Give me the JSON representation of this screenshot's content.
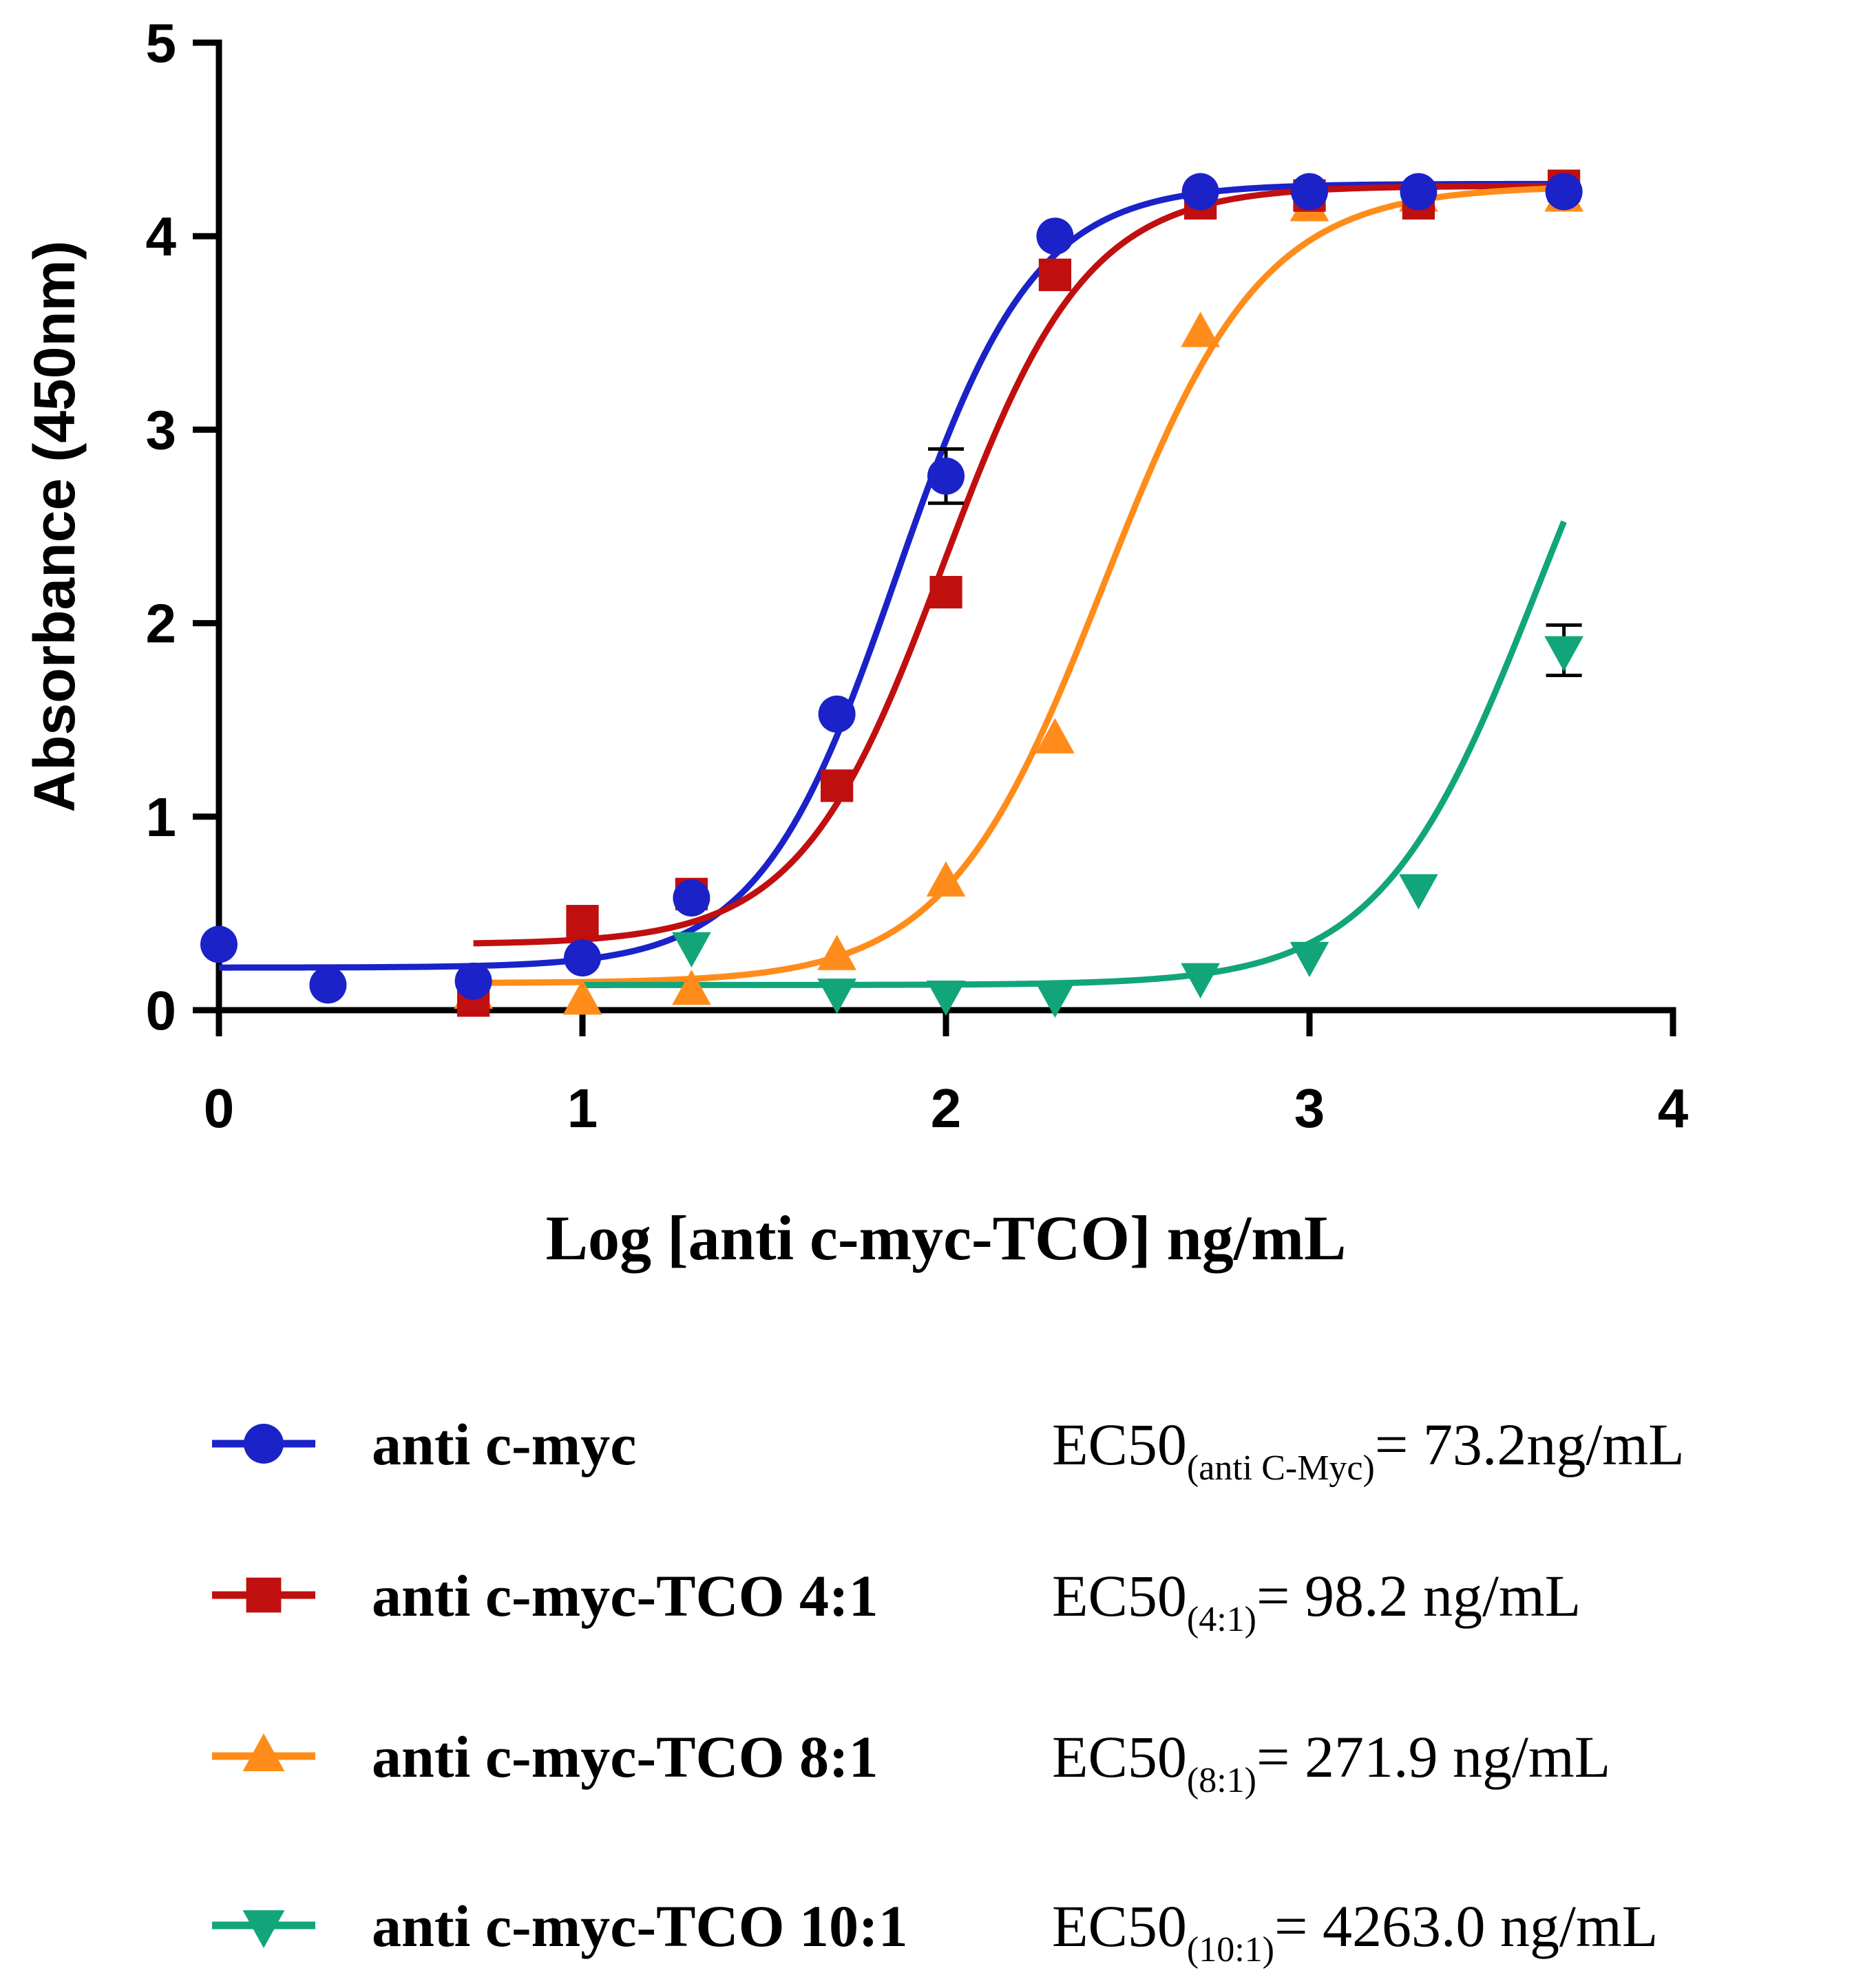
{
  "chart_data": {
    "type": "scatter",
    "xlabel": "Log [anti c-myc-TCO] ng/mL",
    "ylabel": "Absorbance (450nm)",
    "xlim": [
      0,
      4
    ],
    "ylim": [
      0,
      5
    ],
    "xticks": [
      0,
      1,
      2,
      3,
      4
    ],
    "yticks": [
      0,
      1,
      2,
      3,
      4,
      5
    ],
    "legend_position": "bottom",
    "series": [
      {
        "name": "anti c-myc",
        "color": "#1a22c8",
        "marker": "circle",
        "x": [
          0,
          0.3,
          0.7,
          1.0,
          1.3,
          1.7,
          2.0,
          2.3,
          2.7,
          3.0,
          3.3,
          3.7
        ],
        "y": [
          0.34,
          0.13,
          0.15,
          0.27,
          0.58,
          1.53,
          2.76,
          4.0,
          4.23,
          4.23,
          4.23,
          4.23
        ],
        "errors": [
          0,
          0,
          0,
          0,
          0,
          0,
          0.14,
          0,
          0,
          0,
          0,
          0
        ],
        "fit": {
          "bottom": 0.22,
          "top": 4.27,
          "logec50": 1.864,
          "hill": 2.3,
          "xmin": 0,
          "xmax": 3.7
        },
        "ec50_main": "EC50",
        "ec50_sub": "(anti C-Myc)",
        "ec50_value": "= 73.2ng/mL"
      },
      {
        "name": "anti c-myc-TCO 4:1",
        "color": "#c00f0f",
        "marker": "square",
        "x": [
          0.7,
          1.0,
          1.3,
          1.7,
          2.0,
          2.3,
          2.7,
          3.0,
          3.3,
          3.7
        ],
        "y": [
          0.05,
          0.46,
          0.6,
          1.16,
          2.16,
          3.8,
          4.17,
          4.21,
          4.17,
          4.26
        ],
        "errors": [
          0,
          0,
          0,
          0,
          0,
          0,
          0,
          0,
          0,
          0
        ],
        "fit": {
          "bottom": 0.34,
          "top": 4.26,
          "logec50": 1.992,
          "hill": 2.2,
          "xmin": 0.7,
          "xmax": 3.7
        },
        "ec50_main": "EC50",
        "ec50_sub": "(4:1)",
        "ec50_value": "= 98.2 ng/mL"
      },
      {
        "name": "anti c-myc-TCO 8:1",
        "color": "#ff8c1a",
        "marker": "triangle-up",
        "x": [
          0.7,
          1.0,
          1.3,
          1.7,
          2.0,
          2.3,
          2.7,
          3.0,
          3.3,
          3.7
        ],
        "y": [
          0.08,
          0.05,
          0.1,
          0.28,
          0.66,
          1.4,
          3.5,
          4.15,
          4.2,
          4.2
        ],
        "errors": [
          0,
          0,
          0,
          0,
          0,
          0,
          0,
          0,
          0,
          0
        ],
        "fit": {
          "bottom": 0.14,
          "top": 4.26,
          "logec50": 2.434,
          "hill": 2.0,
          "xmin": 0.7,
          "xmax": 3.7
        },
        "ec50_main": "EC50",
        "ec50_sub": "(8:1)",
        "ec50_value": "= 271.9 ng/mL"
      },
      {
        "name": "anti c-myc-TCO 10:1",
        "color": "#12a57a",
        "marker": "triangle-down",
        "x": [
          1.3,
          1.7,
          2.0,
          2.3,
          2.7,
          3.0,
          3.3,
          3.7
        ],
        "y": [
          0.33,
          0.09,
          0.08,
          0.07,
          0.17,
          0.28,
          0.63,
          1.86
        ],
        "errors": [
          0,
          0,
          0,
          0,
          0,
          0,
          0,
          0.13
        ],
        "fit": {
          "bottom": 0.13,
          "top": 4.26,
          "logec50": 3.63,
          "hill": 2.0,
          "xmin": 1.0,
          "xmax": 3.7
        },
        "ec50_main": "EC50",
        "ec50_sub": "(10:1)",
        "ec50_value": "= 4263.0 ng/mL"
      }
    ]
  }
}
